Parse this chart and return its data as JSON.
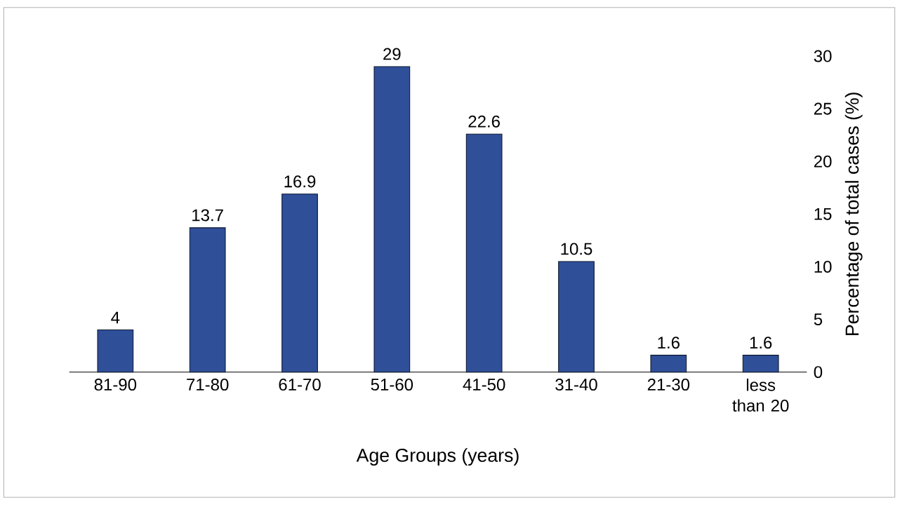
{
  "chart_data": {
    "type": "bar",
    "xlabel": "Age Groups (years)",
    "ylabel": "Percentage of total cases (%)",
    "categories": [
      "81-90",
      "71-80",
      "61-70",
      "51-60",
      "41-50",
      "31-40",
      "21-30",
      "less than 20"
    ],
    "values": [
      4,
      13.7,
      16.9,
      29,
      22.6,
      10.5,
      1.6,
      1.6
    ],
    "color": "#2f4f99",
    "ylim": [
      0,
      30
    ],
    "yticks": [
      0,
      5,
      10,
      15,
      20,
      25,
      30
    ],
    "data_labels": true
  }
}
